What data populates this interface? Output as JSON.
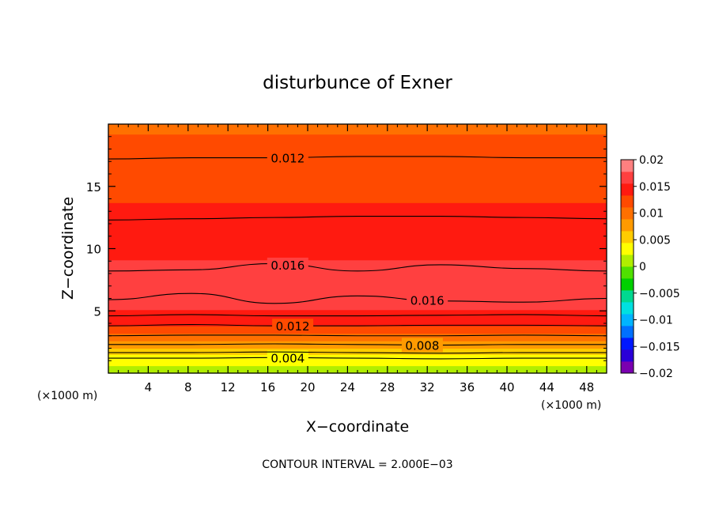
{
  "chart_data": {
    "type": "contour",
    "title": "disturbunce of Exner",
    "xlabel": "X−coordinate",
    "ylabel": "Z−coordinate",
    "x_unit_left": "(×1000 m)",
    "x_unit_right": "(×1000 m)",
    "footer": "CONTOUR INTERVAL = 2.000E−03",
    "xlim": [
      0,
      50
    ],
    "ylim": [
      0,
      20
    ],
    "x_ticks": [
      4,
      8,
      12,
      16,
      20,
      24,
      28,
      32,
      36,
      40,
      44,
      48
    ],
    "y_ticks": [
      5,
      10,
      15
    ],
    "colorbar": {
      "min": -0.02,
      "max": 0.02,
      "tick_values": [
        0.02,
        0.015,
        0.01,
        0.005,
        0,
        -0.005,
        -0.01,
        -0.015,
        -0.02
      ],
      "tick_labels": [
        "0.02",
        "0.015",
        "0.01",
        "0.005",
        "0",
        "−0.005",
        "−0.01",
        "−0.015",
        "−0.02"
      ],
      "colors": [
        "#7a00b0",
        "#2a00d8",
        "#0018ff",
        "#0070ff",
        "#00b4ff",
        "#00e0e0",
        "#00d890",
        "#00d000",
        "#50e000",
        "#b0ee00",
        "#ffff00",
        "#ffcc00",
        "#ff9a00",
        "#ff7000",
        "#ff4a00",
        "#ff1a10",
        "#ff4040",
        "#ff8080"
      ]
    },
    "contour_interval": 0.002,
    "vertical_profile": [
      {
        "z": 0.0,
        "value": 0.0005
      },
      {
        "z": 0.5,
        "value": 0.002
      },
      {
        "z": 1.0,
        "value": 0.003
      },
      {
        "z": 1.5,
        "value": 0.0045
      },
      {
        "z": 2.0,
        "value": 0.0065
      },
      {
        "z": 2.5,
        "value": 0.0085
      },
      {
        "z": 3.0,
        "value": 0.0105
      },
      {
        "z": 3.5,
        "value": 0.0125
      },
      {
        "z": 4.0,
        "value": 0.014
      },
      {
        "z": 4.5,
        "value": 0.015
      },
      {
        "z": 5.0,
        "value": 0.0155
      },
      {
        "z": 5.5,
        "value": 0.0158
      },
      {
        "z": 6.0,
        "value": 0.0162
      },
      {
        "z": 7.0,
        "value": 0.0167
      },
      {
        "z": 8.0,
        "value": 0.0163
      },
      {
        "z": 9.0,
        "value": 0.0156
      },
      {
        "z": 10.0,
        "value": 0.0151
      },
      {
        "z": 12.0,
        "value": 0.0141
      },
      {
        "z": 14.0,
        "value": 0.0132
      },
      {
        "z": 15.0,
        "value": 0.0128
      },
      {
        "z": 17.0,
        "value": 0.012
      },
      {
        "z": 19.0,
        "value": 0.0112
      },
      {
        "z": 20.0,
        "value": 0.0108
      }
    ],
    "contour_lines": [
      {
        "value": 0.004,
        "label": "0.004",
        "label_x": 18.0,
        "z_at": [
          1.2,
          1.2,
          1.25,
          1.2,
          1.15,
          1.2,
          1.2
        ]
      },
      {
        "value": 0.006,
        "label": "",
        "z_at": [
          1.65,
          1.65,
          1.7,
          1.65,
          1.6,
          1.65,
          1.65
        ]
      },
      {
        "value": 0.008,
        "label": "0.008",
        "label_x": 31.5,
        "z_at": [
          2.3,
          2.3,
          2.35,
          2.3,
          2.25,
          2.3,
          2.3
        ]
      },
      {
        "value": 0.01,
        "label": "",
        "z_at": [
          3.0,
          3.05,
          3.05,
          3.0,
          3.0,
          3.05,
          3.0
        ]
      },
      {
        "value": 0.012,
        "label": "0.012",
        "label_x": 18.5,
        "z_at": [
          3.8,
          3.9,
          3.8,
          3.8,
          3.85,
          3.85,
          3.8
        ]
      },
      {
        "value": 0.014,
        "label": "",
        "z_at": [
          4.6,
          4.7,
          4.6,
          4.6,
          4.65,
          4.7,
          4.6
        ]
      },
      {
        "value": 0.016,
        "label": "0.016",
        "label_x": 32.0,
        "z_at": [
          5.9,
          6.4,
          5.6,
          6.2,
          5.8,
          5.7,
          6.0
        ]
      },
      {
        "value": 0.016,
        "label": "0.016",
        "label_x": 18.0,
        "z_at": [
          8.2,
          8.3,
          8.8,
          8.2,
          8.7,
          8.4,
          8.2
        ]
      },
      {
        "value": 0.014,
        "label": "",
        "z_at": [
          12.3,
          12.4,
          12.5,
          12.6,
          12.6,
          12.5,
          12.4
        ]
      },
      {
        "value": 0.012,
        "label": "0.012",
        "label_x": 18.0,
        "z_at": [
          17.2,
          17.3,
          17.3,
          17.4,
          17.4,
          17.3,
          17.3
        ]
      }
    ]
  }
}
